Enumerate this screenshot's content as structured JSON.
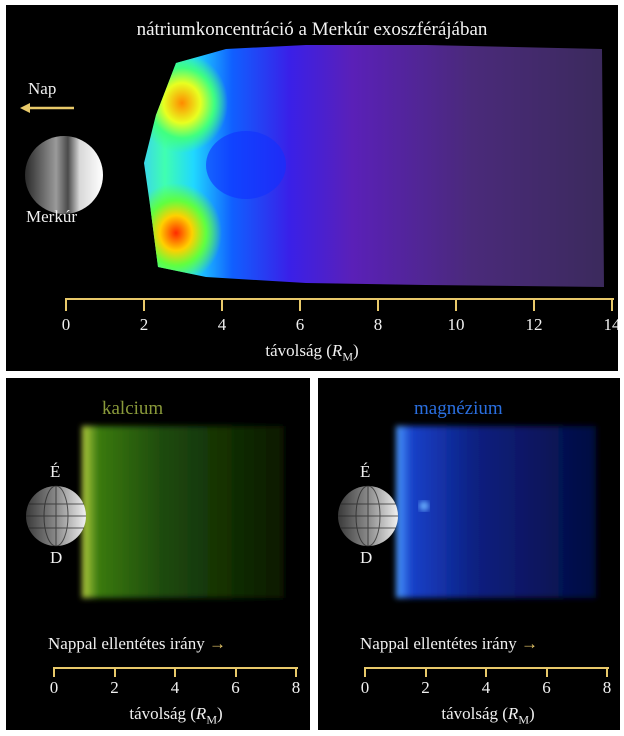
{
  "top": {
    "title": "nátriumkoncentráció a Merkúr exoszférájában",
    "sun_label": "Nap",
    "planet_label": "Merkúr",
    "xlabel_prefix": "távolság (",
    "xlabel_var": "R",
    "xlabel_sub": "M",
    "xlabel_suffix": ")",
    "ticks": [
      "0",
      "2",
      "4",
      "6",
      "8",
      "10",
      "12",
      "14"
    ]
  },
  "left": {
    "title": "kalcium",
    "title_color": "#8a9a3a",
    "north": "É",
    "south": "D",
    "direction": "Nappal ellentétes irány",
    "arrow": "→",
    "xlabel_prefix": "távolság (",
    "xlabel_var": "R",
    "xlabel_sub": "M",
    "xlabel_suffix": ")",
    "ticks": [
      "0",
      "2",
      "4",
      "6",
      "8"
    ]
  },
  "right": {
    "title": "magnézium",
    "title_color": "#2a6fe0",
    "north": "É",
    "south": "D",
    "direction": "Nappal ellentétes irány",
    "arrow": "→",
    "xlabel_prefix": "távolság (",
    "xlabel_var": "R",
    "xlabel_sub": "M",
    "xlabel_suffix": ")",
    "ticks": [
      "0",
      "2",
      "4",
      "6",
      "8"
    ]
  },
  "colors": {
    "axis": "#e8c96a",
    "background": "#000000"
  }
}
